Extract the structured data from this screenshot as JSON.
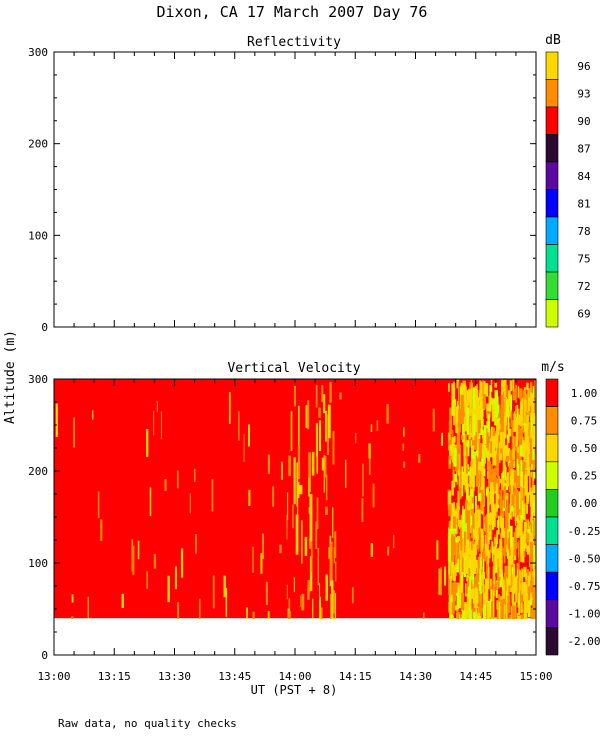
{
  "title": "Dixon, CA 17 March 2007  Day  76",
  "ylabel": "Altitude (m)",
  "xlabel": "UT  (PST + 8)",
  "footer": "Raw data, no quality checks",
  "x_ticks": [
    "13:00",
    "13:15",
    "13:30",
    "13:45",
    "14:00",
    "14:15",
    "14:30",
    "14:45",
    "15:00"
  ],
  "chart_data": [
    {
      "type": "heatmap",
      "title": "Reflectivity",
      "ylim": [
        0,
        300
      ],
      "y_ticks": [
        0,
        100,
        200,
        300
      ],
      "xlim": [
        "13:00",
        "15:00"
      ],
      "has_data": false,
      "colorbar": {
        "unit": "dB",
        "labels": [
          "96",
          "93",
          "90",
          "87",
          "84",
          "81",
          "78",
          "75",
          "72",
          "69"
        ],
        "colors": [
          "#ffd700",
          "#ff8c00",
          "#ff0000",
          "#2a0a2e",
          "#5a0aa0",
          "#0000ff",
          "#00aaff",
          "#00e090",
          "#33dd33",
          "#ccff00"
        ]
      }
    },
    {
      "type": "heatmap",
      "title": "Vertical Velocity",
      "ylim": [
        0,
        300
      ],
      "y_ticks": [
        0,
        100,
        200,
        300
      ],
      "xlim": [
        "13:00",
        "15:00"
      ],
      "data_altitude_range": [
        40,
        300
      ],
      "dominant_value_ms": 1.0,
      "variable_region_start": "14:38",
      "colorbar": {
        "unit": "m/s",
        "labels": [
          "1.00",
          "0.75",
          "0.50",
          "0.25",
          "0.00",
          "-0.25",
          "-0.50",
          "-0.75",
          "-1.00",
          "-2.00"
        ],
        "colors": [
          "#ff0000",
          "#ff8c00",
          "#ffd700",
          "#ccff00",
          "#22cc22",
          "#00e090",
          "#00aaff",
          "#0000ff",
          "#5a0aa0",
          "#2a0a2e"
        ]
      }
    }
  ]
}
